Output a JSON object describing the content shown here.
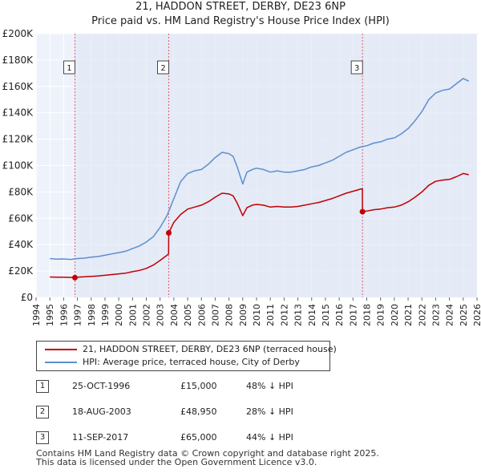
{
  "chart_data": {
    "type": "line",
    "title": "21, HADDON STREET, DERBY, DE23 6NP",
    "subtitle": "Price paid vs. HM Land Registry's House Price Index (HPI)",
    "x_range": [
      1995,
      2026
    ],
    "ylim": [
      0,
      200000
    ],
    "y_ticks": [
      {
        "value": 0,
        "label": "£0"
      },
      {
        "value": 20000,
        "label": "£20K"
      },
      {
        "value": 40000,
        "label": "£40K"
      },
      {
        "value": 60000,
        "label": "£60K"
      },
      {
        "value": 80000,
        "label": "£80K"
      },
      {
        "value": 100000,
        "label": "£100K"
      },
      {
        "value": 120000,
        "label": "£120K"
      },
      {
        "value": 140000,
        "label": "£140K"
      },
      {
        "value": 160000,
        "label": "£160K"
      },
      {
        "value": 180000,
        "label": "£180K"
      },
      {
        "value": 200000,
        "label": "£200K"
      }
    ],
    "x_ticks": [
      "1994",
      "1995",
      "1996",
      "1997",
      "1998",
      "1999",
      "2000",
      "2001",
      "2002",
      "2003",
      "2004",
      "2005",
      "2006",
      "2007",
      "2008",
      "2009",
      "2010",
      "2011",
      "2012",
      "2013",
      "2014",
      "2015",
      "2016",
      "2017",
      "2018",
      "2019",
      "2020",
      "2021",
      "2022",
      "2023",
      "2024",
      "2025",
      "2026"
    ],
    "series": [
      {
        "name": "HPI: Average price, terraced house, City of Derby",
        "color": "#5b8fd0",
        "points": [
          [
            1995.0,
            29500
          ],
          [
            1995.5,
            29000
          ],
          [
            1996.0,
            29200
          ],
          [
            1996.5,
            28800
          ],
          [
            1997.0,
            29500
          ],
          [
            1997.5,
            29800
          ],
          [
            1998.0,
            30500
          ],
          [
            1998.5,
            31000
          ],
          [
            1999.0,
            32000
          ],
          [
            1999.5,
            33000
          ],
          [
            2000.0,
            34000
          ],
          [
            2000.5,
            35000
          ],
          [
            2001.0,
            37000
          ],
          [
            2001.5,
            39000
          ],
          [
            2002.0,
            42000
          ],
          [
            2002.5,
            46000
          ],
          [
            2003.0,
            53000
          ],
          [
            2003.5,
            62000
          ],
          [
            2004.0,
            75000
          ],
          [
            2004.5,
            88000
          ],
          [
            2005.0,
            94000
          ],
          [
            2005.5,
            96000
          ],
          [
            2006.0,
            97000
          ],
          [
            2006.5,
            101000
          ],
          [
            2007.0,
            106000
          ],
          [
            2007.5,
            110000
          ],
          [
            2008.0,
            109000
          ],
          [
            2008.3,
            107000
          ],
          [
            2008.6,
            99000
          ],
          [
            2009.0,
            86000
          ],
          [
            2009.3,
            95000
          ],
          [
            2009.7,
            97000
          ],
          [
            2010.0,
            98000
          ],
          [
            2010.5,
            97000
          ],
          [
            2011.0,
            95000
          ],
          [
            2011.5,
            96000
          ],
          [
            2012.0,
            95000
          ],
          [
            2012.5,
            95000
          ],
          [
            2013.0,
            96000
          ],
          [
            2013.5,
            97000
          ],
          [
            2014.0,
            99000
          ],
          [
            2014.5,
            100000
          ],
          [
            2015.0,
            102000
          ],
          [
            2015.5,
            104000
          ],
          [
            2016.0,
            107000
          ],
          [
            2016.5,
            110000
          ],
          [
            2017.0,
            112000
          ],
          [
            2017.5,
            114000
          ],
          [
            2018.0,
            115000
          ],
          [
            2018.5,
            117000
          ],
          [
            2019.0,
            118000
          ],
          [
            2019.5,
            120000
          ],
          [
            2020.0,
            121000
          ],
          [
            2020.5,
            124000
          ],
          [
            2021.0,
            128000
          ],
          [
            2021.5,
            134000
          ],
          [
            2022.0,
            141000
          ],
          [
            2022.5,
            150000
          ],
          [
            2023.0,
            155000
          ],
          [
            2023.5,
            157000
          ],
          [
            2024.0,
            158000
          ],
          [
            2024.5,
            162000
          ],
          [
            2025.0,
            166000
          ],
          [
            2025.4,
            164000
          ]
        ]
      },
      {
        "name": "21, HADDON STREET, DERBY, DE23 6NP (terraced house)",
        "color": "#c00000",
        "points": [
          [
            1995.0,
            15500
          ],
          [
            1995.5,
            15300
          ],
          [
            1996.0,
            15400
          ],
          [
            1996.5,
            15200
          ],
          [
            1996.82,
            15000
          ],
          [
            1997.0,
            15400
          ],
          [
            1997.5,
            15600
          ],
          [
            1998.0,
            16000
          ],
          [
            1998.5,
            16300
          ],
          [
            1999.0,
            16800
          ],
          [
            1999.5,
            17300
          ],
          [
            2000.0,
            17900
          ],
          [
            2000.5,
            18400
          ],
          [
            2001.0,
            19500
          ],
          [
            2001.5,
            20500
          ],
          [
            2002.0,
            22000
          ],
          [
            2002.5,
            24500
          ],
          [
            2003.0,
            28000
          ],
          [
            2003.5,
            32000
          ],
          [
            2003.62,
            33000
          ],
          [
            2003.63,
            48950
          ],
          [
            2004.0,
            57000
          ],
          [
            2004.5,
            63000
          ],
          [
            2005.0,
            67000
          ],
          [
            2005.5,
            68500
          ],
          [
            2006.0,
            70000
          ],
          [
            2006.5,
            72500
          ],
          [
            2007.0,
            76000
          ],
          [
            2007.5,
            79000
          ],
          [
            2008.0,
            78500
          ],
          [
            2008.3,
            77000
          ],
          [
            2008.6,
            71500
          ],
          [
            2009.0,
            62000
          ],
          [
            2009.3,
            68000
          ],
          [
            2009.7,
            70000
          ],
          [
            2010.0,
            70500
          ],
          [
            2010.5,
            70000
          ],
          [
            2011.0,
            68500
          ],
          [
            2011.5,
            69000
          ],
          [
            2012.0,
            68500
          ],
          [
            2012.5,
            68500
          ],
          [
            2013.0,
            69000
          ],
          [
            2013.5,
            70000
          ],
          [
            2014.0,
            71000
          ],
          [
            2014.5,
            72000
          ],
          [
            2015.0,
            73500
          ],
          [
            2015.5,
            75000
          ],
          [
            2016.0,
            77000
          ],
          [
            2016.5,
            79000
          ],
          [
            2017.0,
            80500
          ],
          [
            2017.5,
            82000
          ],
          [
            2017.68,
            82500
          ],
          [
            2017.69,
            65000
          ],
          [
            2018.0,
            65500
          ],
          [
            2018.5,
            66500
          ],
          [
            2019.0,
            67000
          ],
          [
            2019.5,
            68000
          ],
          [
            2020.0,
            68500
          ],
          [
            2020.5,
            70000
          ],
          [
            2021.0,
            72500
          ],
          [
            2021.5,
            76000
          ],
          [
            2022.0,
            80000
          ],
          [
            2022.5,
            85000
          ],
          [
            2023.0,
            88000
          ],
          [
            2023.5,
            89000
          ],
          [
            2024.0,
            89500
          ],
          [
            2024.5,
            91500
          ],
          [
            2025.0,
            94000
          ],
          [
            2025.4,
            93000
          ]
        ]
      }
    ],
    "sales": [
      {
        "label": "1",
        "x": 1996.82,
        "value": 15000,
        "date": "25-OCT-1996",
        "price": "£15,000",
        "hpi": "48% ↓ HPI"
      },
      {
        "label": "2",
        "x": 2003.63,
        "value": 48950,
        "date": "18-AUG-2003",
        "price": "£48,950",
        "hpi": "28% ↓ HPI"
      },
      {
        "label": "3",
        "x": 2017.69,
        "value": 65000,
        "date": "11-SEP-2017",
        "price": "£65,000",
        "hpi": "44% ↓ HPI"
      }
    ]
  },
  "legend": {
    "property_label": "21, HADDON STREET, DERBY, DE23 6NP (terraced house)",
    "hpi_label": "HPI: Average price, terraced house, City of Derby"
  },
  "footer": {
    "line1": "Contains HM Land Registry data © Crown copyright and database right 2025.",
    "line2": "This data is licensed under the Open Government Licence v3.0."
  }
}
